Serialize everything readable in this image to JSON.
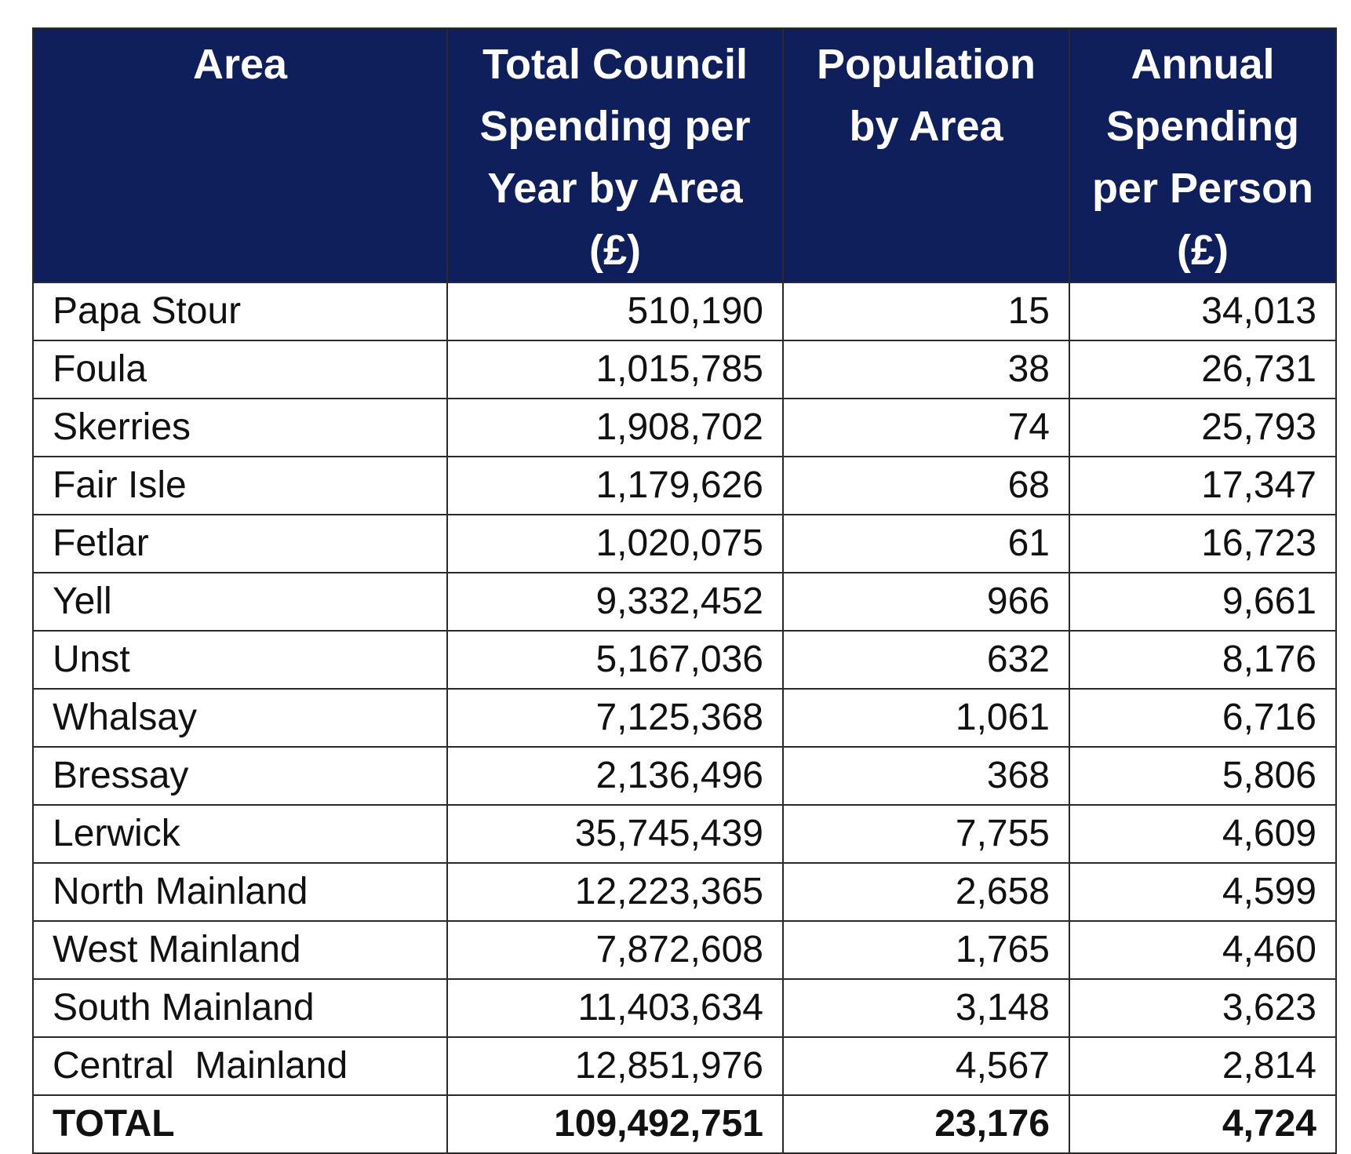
{
  "table": {
    "headers": [
      "Area",
      "Total Council Spending per Year by Area (£)",
      "Population by Area",
      "Annual Spending per Person (£)"
    ],
    "rows": [
      {
        "area": "Papa Stour",
        "spending": "510,190",
        "population": "15",
        "per_person": "34,013"
      },
      {
        "area": "Foula",
        "spending": "1,015,785",
        "population": "38",
        "per_person": "26,731"
      },
      {
        "area": "Skerries",
        "spending": "1,908,702",
        "population": "74",
        "per_person": "25,793"
      },
      {
        "area": "Fair Isle",
        "spending": "1,179,626",
        "population": "68",
        "per_person": "17,347"
      },
      {
        "area": "Fetlar",
        "spending": "1,020,075",
        "population": "61",
        "per_person": "16,723"
      },
      {
        "area": "Yell",
        "spending": "9,332,452",
        "population": "966",
        "per_person": "9,661"
      },
      {
        "area": "Unst",
        "spending": "5,167,036",
        "population": "632",
        "per_person": "8,176"
      },
      {
        "area": "Whalsay",
        "spending": "7,125,368",
        "population": "1,061",
        "per_person": "6,716"
      },
      {
        "area": "Bressay",
        "spending": "2,136,496",
        "population": "368",
        "per_person": "5,806"
      },
      {
        "area": "Lerwick",
        "spending": "35,745,439",
        "population": "7,755",
        "per_person": "4,609"
      },
      {
        "area": "North Mainland",
        "spending": "12,223,365",
        "population": "2,658",
        "per_person": "4,599"
      },
      {
        "area": "West Mainland",
        "spending": "7,872,608",
        "population": "1,765",
        "per_person": "4,460"
      },
      {
        "area": "South Mainland",
        "spending": "11,403,634",
        "population": "3,148",
        "per_person": "3,623"
      },
      {
        "area": "Central  Mainland",
        "spending": "12,851,976",
        "population": "4,567",
        "per_person": "2,814"
      }
    ],
    "total": {
      "area": "TOTAL",
      "spending": "109,492,751",
      "population": "23,176",
      "per_person": "4,724"
    }
  },
  "colors": {
    "header_background": "#0e1f5b",
    "header_text": "#ffffff",
    "border": "#2a2a2a"
  }
}
